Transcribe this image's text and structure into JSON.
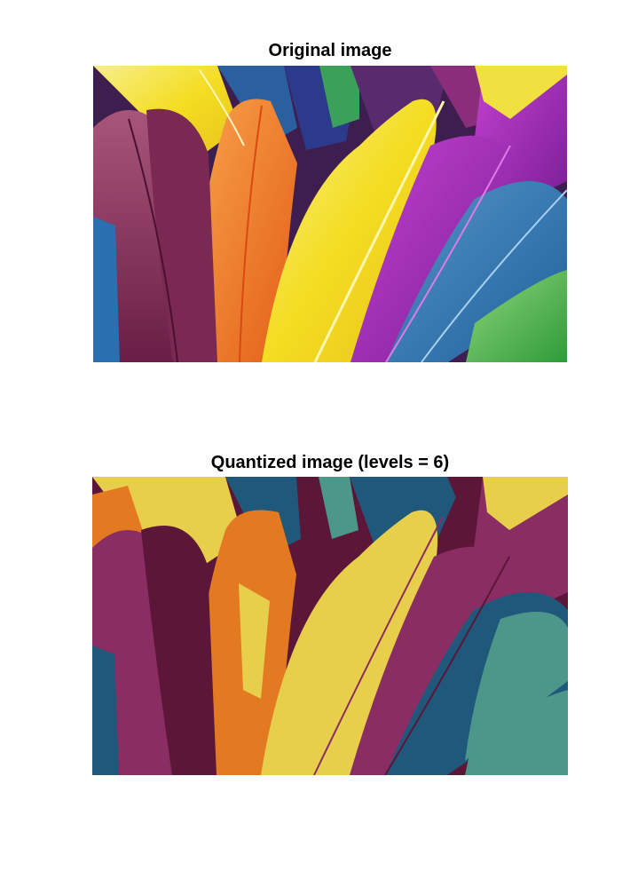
{
  "figure": {
    "top_title": "Original image",
    "bottom_title": "Quantized image (levels =  6)"
  },
  "images": {
    "original": {
      "subject": "colorful feathers",
      "description_colors": [
        "#f2d41e",
        "#8a2d5e",
        "#f07a22",
        "#a61fb0",
        "#2f77b2",
        "#4eb449"
      ]
    },
    "quantized": {
      "levels": 6,
      "palette": [
        "#5b1638",
        "#8a2d63",
        "#e37a22",
        "#e8cf4b",
        "#1f587b",
        "#4d968a"
      ]
    }
  }
}
